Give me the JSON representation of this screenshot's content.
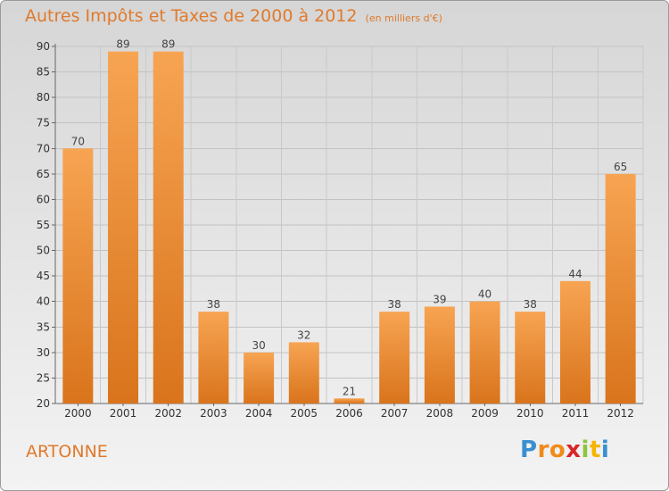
{
  "title": "Autres Impôts et Taxes de 2000 à 2012",
  "unit": "(en milliers d'€)",
  "commune": "ARTONNE",
  "logo": {
    "letters": [
      "P",
      "r",
      "o",
      "x",
      "i",
      "t",
      "i"
    ],
    "colors": [
      "#3a8fd0",
      "#f08b1a",
      "#f08b1a",
      "#d7262b",
      "#8cc63f",
      "#f5b400",
      "#3a8fd0"
    ]
  },
  "colors": {
    "bar_top": "#f7a452",
    "bar_bottom": "#d9741c",
    "title": "#e07a2c"
  },
  "chart_data": {
    "type": "bar",
    "title": "Autres Impôts et Taxes de 2000 à 2012",
    "subtitle": "(en milliers d'€)",
    "categories": [
      "2000",
      "2001",
      "2002",
      "2003",
      "2004",
      "2005",
      "2006",
      "2007",
      "2008",
      "2009",
      "2010",
      "2011",
      "2012"
    ],
    "values": [
      70,
      89,
      89,
      38,
      30,
      32,
      21,
      38,
      39,
      40,
      38,
      44,
      65
    ],
    "ylim": [
      20,
      90
    ],
    "yticks": [
      20,
      25,
      30,
      35,
      40,
      45,
      50,
      55,
      60,
      65,
      70,
      75,
      80,
      85,
      90
    ],
    "grid": true
  }
}
